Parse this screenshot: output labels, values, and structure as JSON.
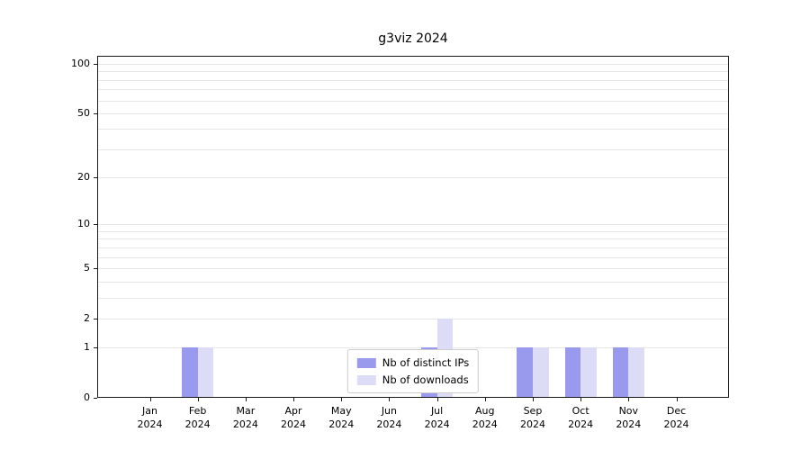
{
  "title": "g3viz 2024",
  "chart_data": {
    "type": "bar",
    "title": "g3viz 2024",
    "categories": [
      "Jan 2024",
      "Feb 2024",
      "Mar 2024",
      "Apr 2024",
      "May 2024",
      "Jun 2024",
      "Jul 2024",
      "Aug 2024",
      "Sep 2024",
      "Oct 2024",
      "Nov 2024",
      "Dec 2024"
    ],
    "series": [
      {
        "name": "Nb of distinct IPs",
        "color": "#9999ed",
        "values": [
          0,
          1,
          0,
          0,
          0,
          0,
          1,
          0,
          1,
          1,
          1,
          0
        ]
      },
      {
        "name": "Nb of downloads",
        "color": "#dcdcf7",
        "values": [
          0,
          1,
          0,
          0,
          0,
          0,
          2,
          0,
          1,
          1,
          1,
          0
        ]
      }
    ],
    "yscale": "log1p",
    "y_ticks": [
      0,
      1,
      2,
      5,
      10,
      20,
      50,
      100
    ],
    "ylim": [
      0,
      112
    ],
    "grid": true,
    "legend_position": "lower center"
  }
}
